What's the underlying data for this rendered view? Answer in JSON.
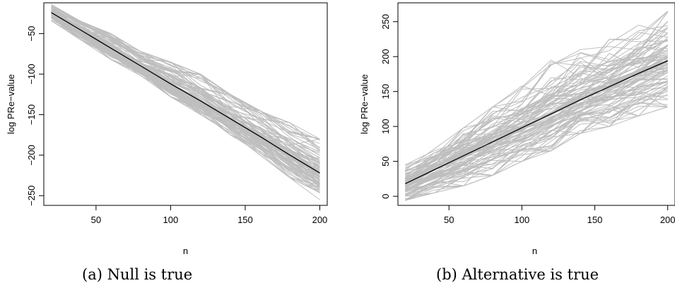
{
  "chart_data": [
    {
      "type": "line",
      "caption": "(a) Null is true",
      "xlabel": "n",
      "ylabel": "log PRe−value",
      "xlim": [
        15,
        205
      ],
      "ylim": [
        -262,
        -12
      ],
      "xticks": [
        50,
        100,
        150,
        200
      ],
      "yticks": [
        -50,
        -100,
        -150,
        -200,
        -250
      ],
      "ytick_labels": [
        "−50",
        "−100",
        "−150",
        "−200",
        "−250"
      ],
      "x": [
        20,
        40,
        60,
        80,
        100,
        120,
        140,
        160,
        180,
        200
      ],
      "mean_line": {
        "color": "#000000",
        "values": [
          -24,
          -46,
          -68,
          -90,
          -112,
          -133,
          -155,
          -177,
          -200,
          -222
        ]
      },
      "replicates": {
        "count": 100,
        "color": "#bebebe",
        "envelope_high": [
          -14,
          -35,
          -50,
          -72,
          -85,
          -100,
          -125,
          -145,
          -160,
          -180
        ],
        "envelope_low": [
          -34,
          -58,
          -82,
          -102,
          -128,
          -150,
          -175,
          -200,
          -228,
          -255
        ]
      }
    },
    {
      "type": "line",
      "caption": "(b) Alternative is true",
      "xlabel": "n",
      "ylabel": "log PRe−value",
      "xlim": [
        15,
        205
      ],
      "ylim": [
        -13,
        277
      ],
      "xticks": [
        50,
        100,
        150,
        200
      ],
      "yticks": [
        0,
        50,
        100,
        150,
        200,
        250
      ],
      "ytick_labels": [
        "0",
        "50",
        "100",
        "150",
        "200",
        "250"
      ],
      "x": [
        20,
        40,
        60,
        80,
        100,
        120,
        140,
        160,
        180,
        200
      ],
      "mean_line": {
        "color": "#000000",
        "values": [
          18,
          38,
          58,
          78,
          98,
          118,
          138,
          157,
          176,
          194
        ]
      },
      "replicates": {
        "count": 100,
        "color": "#bebebe",
        "envelope_high": [
          45,
          68,
          98,
          128,
          158,
          195,
          210,
          225,
          245,
          265
        ],
        "envelope_low": [
          -6,
          5,
          15,
          30,
          50,
          65,
          90,
          100,
          115,
          128
        ]
      }
    }
  ]
}
